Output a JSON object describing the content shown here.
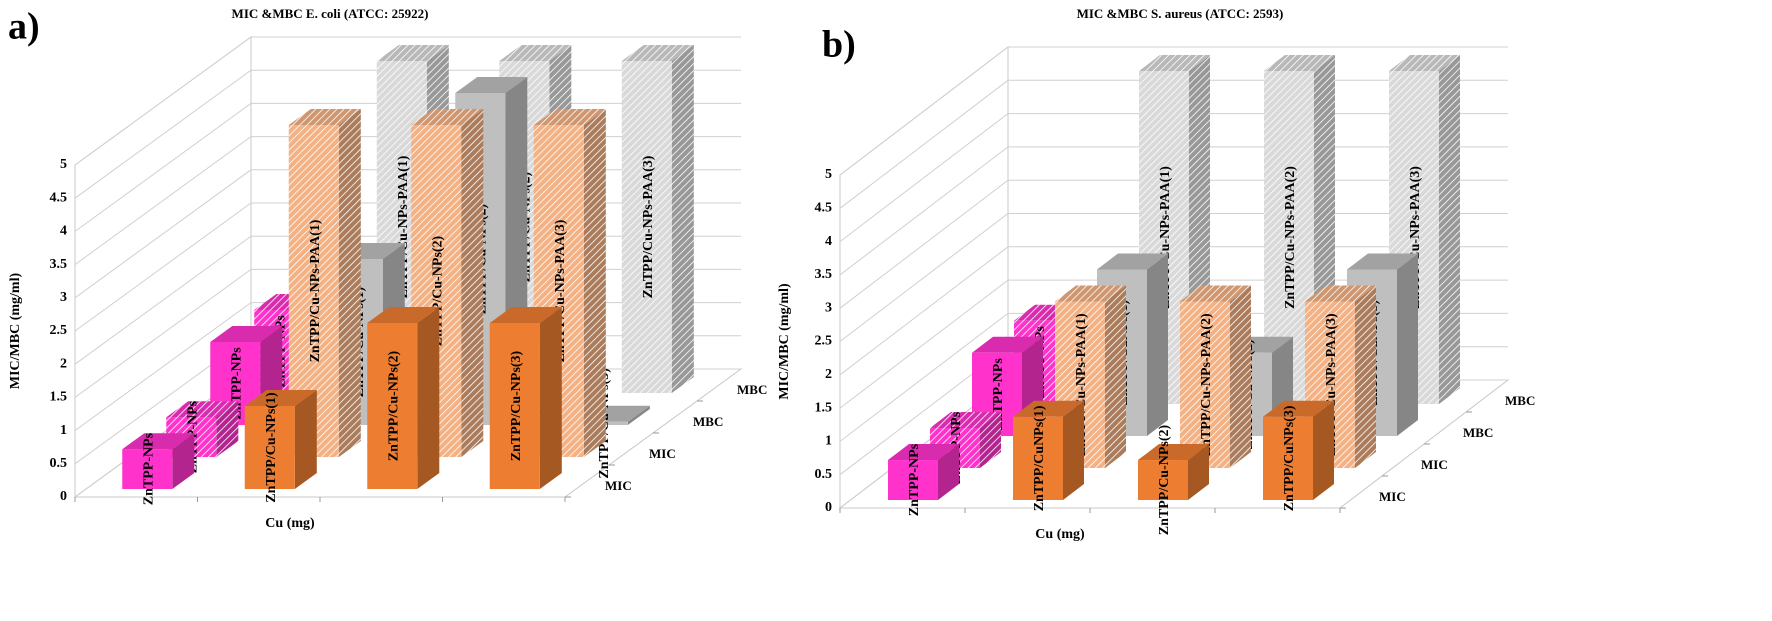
{
  "chart_data": [
    {
      "type": "bar3d",
      "panel_label": "a)",
      "title": "MIC &MBC  E. coli (ATCC:  25922)",
      "ylabel": "MIC/MBC (mg/ml)",
      "xlabel": "Cu (mg)",
      "categories": [
        null,
        null,
        null,
        null
      ],
      "ylim": [
        0,
        5
      ],
      "yticks": [
        0,
        0.5,
        1,
        1.5,
        2,
        2.5,
        3,
        3.5,
        4,
        4.5,
        5
      ],
      "grid": true,
      "series": [
        {
          "name": "MIC",
          "hatched": false,
          "colors": [
            "#ff33cc",
            "#ed7d31",
            "#ed7d31",
            "#ed7d31"
          ],
          "values": [
            0.6,
            1.25,
            2.5,
            2.5
          ],
          "labels": [
            "ZnTPP-NPs",
            "ZnTPP/Cu-NPs(1)",
            "ZnTPP/Cu-NPs(2)",
            "ZnTPP/Cu-NPs(3)"
          ]
        },
        {
          "name": "MIC",
          "hatched": true,
          "colors": [
            "#ff33cc",
            "#f4b183",
            "#f4b183",
            "#f4b183"
          ],
          "values": [
            0.6,
            5,
            5,
            5
          ],
          "labels": [
            "ZnTPP-NPs",
            "ZnTPP/Cu-NPs-PAA(1)",
            "ZnTPP/Cu-NPs(2)",
            "ZnTPP/Cu-NPs-PAA(3)"
          ]
        },
        {
          "name": "MBC",
          "hatched": false,
          "colors": [
            "#ff33cc",
            "#bfbfbf",
            "#bfbfbf",
            "#bfbfbf"
          ],
          "values": [
            1.25,
            2.5,
            5,
            0.05
          ],
          "labels": [
            "ZnTPP-NPs",
            "ZnTPP/Cu-NPs(1)",
            "ZnTPP/Cu-NPs(2)",
            "ZnTPP/Cu-NPs(3)"
          ]
        },
        {
          "name": "MBC",
          "hatched": true,
          "colors": [
            "#ff33cc",
            "#d9d9d9",
            "#d9d9d9",
            "#d9d9d9"
          ],
          "values": [
            1.25,
            5,
            5,
            5
          ],
          "labels": [
            "ZnTPP-NPs",
            "ZnTPP/Cu-NPs-PAA(1)",
            "ZnTPP/Cu-NPs(2)",
            "ZnTPP/Cu-NPs-PAA(3)"
          ]
        }
      ]
    },
    {
      "type": "bar3d",
      "panel_label": "b)",
      "title": "MIC &MBC  S. aureus (ATCC: 2593)",
      "ylabel": "MIC/MBC (mg/ml)",
      "xlabel": "Cu (mg)",
      "categories": [
        null,
        null,
        null,
        null
      ],
      "ylim": [
        0,
        5
      ],
      "yticks": [
        0,
        0.5,
        1,
        1.5,
        2,
        2.5,
        3,
        3.5,
        4,
        4.5,
        5
      ],
      "grid": true,
      "series": [
        {
          "name": "MIC",
          "hatched": false,
          "colors": [
            "#ff33cc",
            "#ed7d31",
            "#ed7d31",
            "#ed7d31"
          ],
          "values": [
            0.6,
            1.25,
            0.6,
            1.25
          ],
          "labels": [
            "ZnTPP-NPs",
            "ZnTPP/CuNPs(1)",
            "ZnTPP/Cu-NPs(2)",
            "ZnTPP/CuNPs(3)"
          ]
        },
        {
          "name": "MIC",
          "hatched": true,
          "colors": [
            "#ff33cc",
            "#f4b183",
            "#f4b183",
            "#f4b183"
          ],
          "values": [
            0.6,
            2.5,
            2.5,
            2.5
          ],
          "labels": [
            "ZnTPP-NPs",
            "ZnTPP/Cu-NPs-PAA(1)",
            "ZnTPP/Cu-NPs-PAA(2)",
            "ZnTPP/Cu-NPs-PAA(3)"
          ]
        },
        {
          "name": "MBC",
          "hatched": false,
          "colors": [
            "#ff33cc",
            "#bfbfbf",
            "#bfbfbf",
            "#bfbfbf"
          ],
          "values": [
            1.25,
            2.5,
            1.25,
            2.5
          ],
          "labels": [
            "ZnTPP-NPs",
            "ZnTPP/CuNPs(1)",
            "ZnTPP/Cu-NPs(2)",
            "ZnTPP/CuNPs(3)"
          ]
        },
        {
          "name": "MBC",
          "hatched": true,
          "colors": [
            "#ff33cc",
            "#d9d9d9",
            "#d9d9d9",
            "#d9d9d9"
          ],
          "values": [
            1.25,
            5,
            5,
            5
          ],
          "labels": [
            "ZnTPP-NPs",
            "ZnTPP/Cu-NPs-PAA(1)",
            "ZnTPP/Cu-NPs-PAA(2)",
            "ZnTPP/Cu-NPs-PAA(3)"
          ]
        }
      ]
    }
  ]
}
